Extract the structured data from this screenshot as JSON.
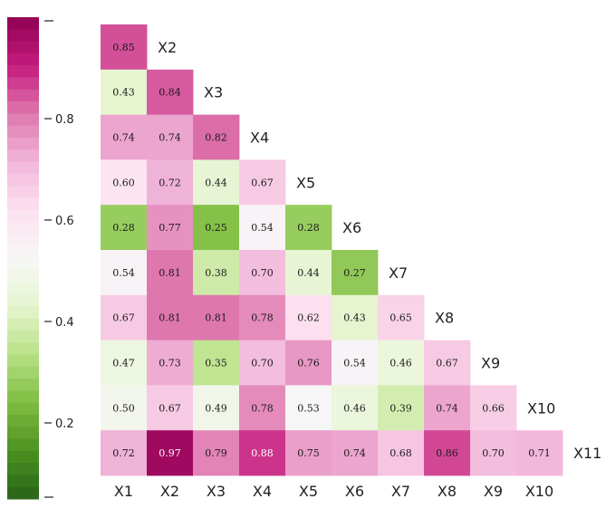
{
  "chart_data": {
    "type": "heatmap",
    "title": "",
    "colormap": "PiYG",
    "vmin": 0.05,
    "vmax": 1.0,
    "row_labels": [
      "X2",
      "X3",
      "X4",
      "X5",
      "X6",
      "X7",
      "X8",
      "X9",
      "X10",
      "X11"
    ],
    "col_labels": [
      "X1",
      "X2",
      "X3",
      "X4",
      "X5",
      "X6",
      "X7",
      "X8",
      "X9",
      "X10"
    ],
    "values": [
      [
        0.85
      ],
      [
        0.43,
        0.84
      ],
      [
        0.74,
        0.74,
        0.82
      ],
      [
        0.6,
        0.72,
        0.44,
        0.67
      ],
      [
        0.28,
        0.77,
        0.25,
        0.54,
        0.28
      ],
      [
        0.54,
        0.81,
        0.38,
        0.7,
        0.44,
        0.27
      ],
      [
        0.67,
        0.81,
        0.81,
        0.78,
        0.62,
        0.43,
        0.65
      ],
      [
        0.47,
        0.73,
        0.35,
        0.7,
        0.76,
        0.54,
        0.46,
        0.67
      ],
      [
        0.5,
        0.67,
        0.49,
        0.78,
        0.53,
        0.46,
        0.39,
        0.74,
        0.66
      ],
      [
        0.72,
        0.97,
        0.79,
        0.88,
        0.75,
        0.74,
        0.68,
        0.86,
        0.7,
        0.71
      ]
    ],
    "colorbar": {
      "ticks": [
        0.2,
        0.4,
        0.6,
        0.8
      ],
      "tick_labels": [
        "0.2",
        "0.4",
        "0.6",
        "0.8"
      ]
    }
  }
}
